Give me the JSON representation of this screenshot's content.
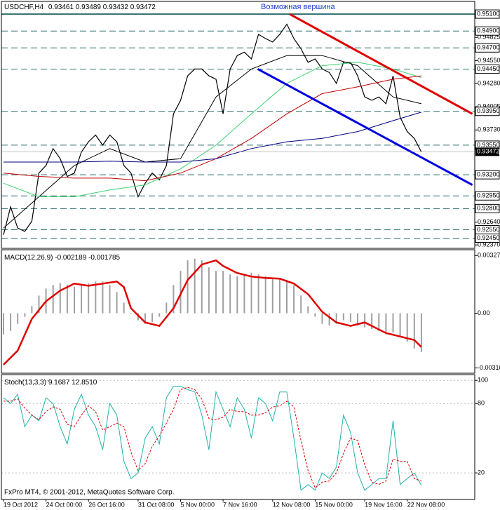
{
  "chart_data": [
    {
      "type": "price",
      "title": "USDCHF,H4",
      "header_values": [
        0.93461,
        0.93489,
        0.93432,
        0.93472
      ],
      "annotation": "Возможная вершина",
      "categories": [
        "19 Oct 2012",
        null,
        null,
        null,
        null,
        null,
        "24 Oct 00:00",
        null,
        null,
        null,
        null,
        null,
        "26 Oct 16:00",
        null,
        null,
        null,
        null,
        null,
        null,
        "31 Oct 08:00",
        null,
        null,
        null,
        null,
        null,
        "5 Nov 00:00",
        null,
        null,
        null,
        null,
        null,
        "7 Nov 16:00",
        null,
        null,
        null,
        null,
        null,
        null,
        "12 Nov 08:00",
        null,
        null,
        null,
        null,
        null,
        "15 Nov 00:00",
        null,
        null,
        null,
        null,
        null,
        null,
        "19 Nov 16:00",
        null,
        null,
        null,
        null,
        null,
        "22 Nov 08:00",
        null,
        null
      ],
      "ylim": [
        0.9233,
        0.9525
      ],
      "yticks": [
        {
          "value": 0.94825,
          "label": "0.94825"
        },
        {
          "value": 0.9455,
          "label": "0.94550"
        },
        {
          "value": 0.9428,
          "label": "0.94280"
        },
        {
          "value": 0.94005,
          "label": "0.94005"
        },
        {
          "value": 0.9373,
          "label": "0.93730"
        },
        {
          "value": 0.9264,
          "label": "0.92640"
        },
        {
          "value": 0.9237,
          "label": "0.92370"
        }
      ],
      "levels": [
        {
          "value": 0.951,
          "label": "0.95100"
        },
        {
          "value": 0.949,
          "label": "0.94900"
        },
        {
          "value": 0.947,
          "label": "0.94700"
        },
        {
          "value": 0.9445,
          "label": "0.94450"
        },
        {
          "value": 0.9395,
          "label": "0.93950"
        },
        {
          "value": 0.9355,
          "label": "0.93550"
        },
        {
          "value": 0.932,
          "label": "0.93200"
        },
        {
          "value": 0.9295,
          "label": "0.92950"
        },
        {
          "value": 0.928,
          "label": "0.92800"
        },
        {
          "value": 0.9255,
          "label": "0.92550"
        },
        {
          "value": 0.9245,
          "label": "0.92450"
        }
      ],
      "last": {
        "value": 0.93472,
        "label": "0.93472"
      },
      "series": [
        {
          "color": "#000000",
          "values": [
            0.9249,
            0.9282,
            0.9257,
            0.9253,
            0.9265,
            0.9322,
            0.9331,
            0.9351,
            0.9339,
            0.9318,
            0.9322,
            0.9347,
            0.9359,
            0.9367,
            0.9355,
            0.9367,
            0.9359,
            0.9331,
            0.9322,
            0.9294,
            0.931,
            0.9322,
            0.9314,
            0.9331,
            0.9392,
            0.9408,
            0.9437,
            0.9445,
            0.9445,
            0.9437,
            0.9433,
            0.9392,
            0.9445,
            0.9461,
            0.9465,
            0.9457,
            0.9486,
            0.9481,
            0.9477,
            0.9486,
            0.9498,
            0.9481,
            0.9469,
            0.9453,
            0.9457,
            0.9445,
            0.9441,
            0.9428,
            0.9453,
            0.9453,
            0.9437,
            0.9412,
            0.9408,
            0.9412,
            0.9404,
            0.9437,
            0.9388,
            0.9371,
            0.9363,
            0.9347
          ]
        },
        {
          "color": "#000000",
          "x": [
            0,
            5,
            10,
            15,
            20,
            25,
            30,
            35,
            40,
            45,
            50,
            55,
            59
          ],
          "values": [
            0.9257,
            0.9294,
            0.9331,
            0.9351,
            0.9335,
            0.9339,
            0.9412,
            0.9445,
            0.9461,
            0.9461,
            0.9449,
            0.9412,
            0.9404
          ]
        },
        {
          "color": "#3cd070",
          "x": [
            0,
            5,
            10,
            15,
            20,
            25,
            30,
            35,
            40,
            45,
            50,
            55,
            59
          ],
          "values": [
            0.931,
            0.9294,
            0.9294,
            0.9302,
            0.9308,
            0.9327,
            0.9355,
            0.9392,
            0.9428,
            0.9449,
            0.9453,
            0.9445,
            0.9435
          ]
        },
        {
          "color": "#c00000",
          "x": [
            0,
            5,
            10,
            15,
            20,
            25,
            30,
            35,
            40,
            45,
            50,
            55,
            59
          ],
          "values": [
            0.9322,
            0.9318,
            0.9316,
            0.9316,
            0.9313,
            0.9322,
            0.9339,
            0.9363,
            0.9392,
            0.9416,
            0.9424,
            0.9433,
            0.9437
          ]
        },
        {
          "color": "#000080",
          "x": [
            0,
            5,
            10,
            15,
            20,
            25,
            30,
            35,
            40,
            45,
            50,
            55,
            59
          ],
          "values": [
            0.9335,
            0.9335,
            0.9335,
            0.9336,
            0.9335,
            0.9335,
            0.9339,
            0.9351,
            0.9359,
            0.9363,
            0.9371,
            0.9384,
            0.9394
          ]
        }
      ],
      "trendlines": [
        {
          "color": "#e00000",
          "x": [
            40.4,
            66.2
          ],
          "values": [
            0.951,
            0.9392
          ]
        },
        {
          "color": "#0000e0",
          "x": [
            35.9,
            66.2
          ],
          "values": [
            0.9445,
            0.9308
          ]
        }
      ]
    },
    {
      "type": "macd",
      "title": "MACD(12,26,9)",
      "header_values": [
        -0.002189,
        -0.001785
      ],
      "ylim": [
        -0.0034,
        0.0036
      ],
      "yticks": [
        0.00327,
        {
          "value": 0,
          "label": "0.00"
        },
        {
          "value": -0.0031,
          "label": "-0.00310"
        }
      ],
      "histogram": {
        "color": "#a0a0a0",
        "values": [
          -0.0012,
          -0.001,
          -0.0006,
          -0.0002,
          0.0004,
          0.001,
          0.0014,
          0.0016,
          0.0017,
          0.0016,
          0.0015,
          0.0016,
          0.0017,
          0.0018,
          0.0018,
          0.0016,
          0.0012,
          0.0006,
          0,
          -0.0004,
          -0.0006,
          -0.0005,
          -0.0002,
          0.0006,
          0.0016,
          0.0024,
          0.003,
          0.0031,
          0.003,
          0.0026,
          0.0024,
          0.0024,
          0.0022,
          0.0021,
          0.0022,
          0.0023,
          0.0022,
          0.0021,
          0.002,
          0.002,
          0.0019,
          0.0016,
          0.001,
          0.0004,
          -0.0002,
          -0.0006,
          -0.0007,
          -0.0006,
          -0.0004,
          -0.0005,
          -0.0007,
          -0.0008,
          -0.0009,
          -0.001,
          -0.0012,
          -0.0011,
          -0.0013,
          -0.0016,
          -0.002,
          -0.0022
        ]
      },
      "signal": {
        "color": "#e00000",
        "x": [
          0,
          2,
          4,
          6,
          8,
          10,
          12,
          14,
          16,
          17,
          18,
          20,
          22,
          24,
          26,
          28,
          30,
          31,
          33,
          35,
          37,
          39,
          41,
          43,
          45,
          47,
          49,
          51,
          52,
          54,
          56,
          58,
          59
        ],
        "values": [
          -0.00292,
          -0.00212,
          -0.00032,
          0.00068,
          0.00128,
          0.00168,
          0.00156,
          0.00168,
          0.0018,
          0.00148,
          0.00028,
          -0.00052,
          -0.00072,
          0.00028,
          0.00188,
          0.00276,
          0.003,
          0.00268,
          0.00228,
          0.00208,
          0.002,
          0.00196,
          0.00168,
          0.00108,
          8e-05,
          -0.00052,
          -0.00072,
          -0.00052,
          -0.00072,
          -0.00112,
          -0.00132,
          -0.00152,
          -0.00192
        ]
      }
    },
    {
      "type": "stoch",
      "title": "Stoch(13,3,3)",
      "header_values": [
        9.1687,
        {
          "value": 12.851,
          "label": "12.8510"
        }
      ],
      "ylim": [
        -3,
        105
      ],
      "yticks": [
        100,
        80,
        20
      ],
      "series": [
        {
          "color": "#20b2aa",
          "values": [
            85,
            80,
            88,
            60,
            70,
            65,
            85,
            80,
            60,
            45,
            75,
            88,
            70,
            60,
            40,
            80,
            70,
            30,
            15,
            20,
            50,
            60,
            45,
            85,
            95,
            95,
            92,
            90,
            70,
            40,
            90,
            75,
            60,
            85,
            75,
            50,
            85,
            80,
            65,
            90,
            90,
            50,
            5,
            10,
            5,
            20,
            15,
            25,
            70,
            55,
            20,
            5,
            10,
            15,
            15,
            65,
            10,
            15,
            20,
            9.1687
          ]
        },
        {
          "color": "#e00000",
          "dashed": true,
          "values": [
            82,
            82,
            84,
            76,
            70,
            66,
            73,
            77,
            75,
            62,
            60,
            70,
            78,
            73,
            57,
            60,
            63,
            60,
            38,
            22,
            28,
            43,
            52,
            63,
            75,
            92,
            94,
            92,
            84,
            67,
            66,
            68,
            75,
            73,
            73,
            70,
            70,
            72,
            77,
            78,
            82,
            77,
            48,
            22,
            7,
            12,
            13,
            20,
            37,
            50,
            48,
            27,
            12,
            10,
            13,
            32,
            30,
            30,
            15,
            12.851
          ]
        }
      ]
    }
  ],
  "footer": "FxPro MT4, © 2001-2012, MetaQuotes Software Corp."
}
